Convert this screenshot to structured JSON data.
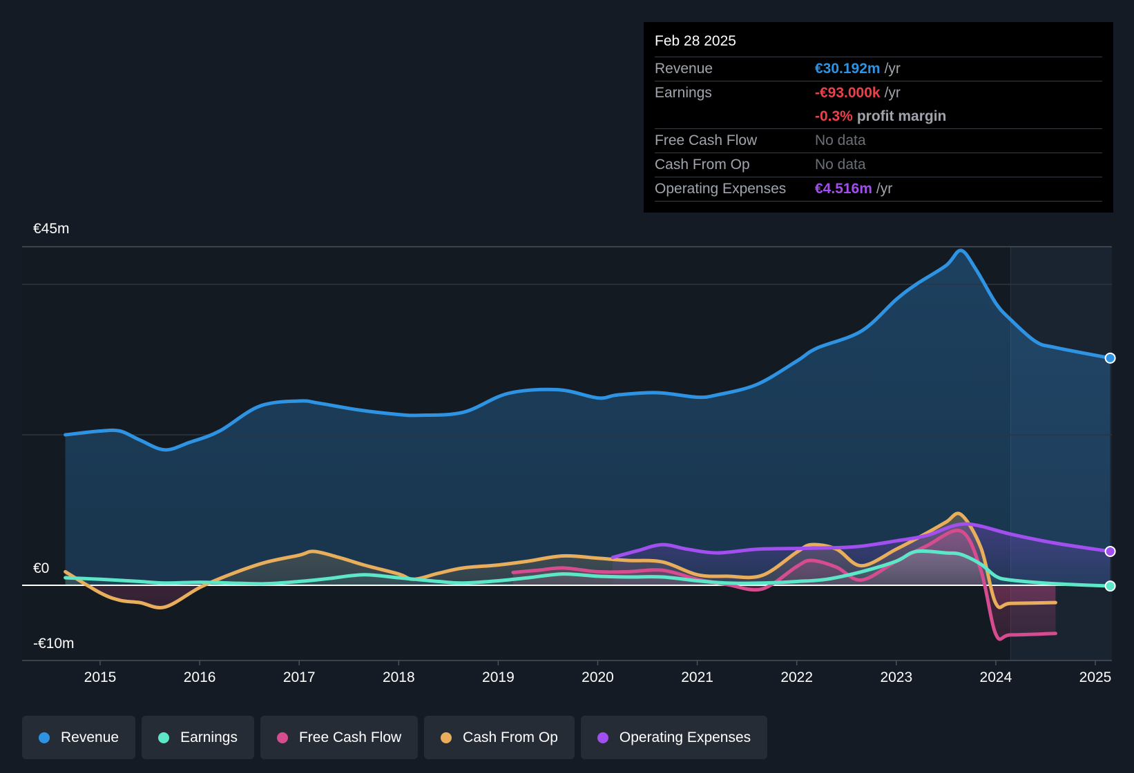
{
  "tooltip": {
    "date": "Feb 28 2025",
    "revenue": {
      "label": "Revenue",
      "value": "€30.192m",
      "unit": "/yr"
    },
    "earnings": {
      "label": "Earnings",
      "value": "-€93.000k",
      "unit": "/yr"
    },
    "margin": {
      "value": "-0.3%",
      "label": "profit margin"
    },
    "fcf": {
      "label": "Free Cash Flow",
      "value": "No data"
    },
    "cfo": {
      "label": "Cash From Op",
      "value": "No data"
    },
    "opex": {
      "label": "Operating Expenses",
      "value": "€4.516m",
      "unit": "/yr"
    }
  },
  "legend": [
    {
      "label": "Revenue",
      "color": "#2e93e2"
    },
    {
      "label": "Earnings",
      "color": "#5ee6c8"
    },
    {
      "label": "Free Cash Flow",
      "color": "#d64d8f"
    },
    {
      "label": "Cash From Op",
      "color": "#e8ae5c"
    },
    {
      "label": "Operating Expenses",
      "color": "#a24ff0"
    }
  ],
  "chart_data": {
    "type": "line",
    "ylim": [
      -10,
      45
    ],
    "y_tick_labels": [
      "€45m",
      "€0",
      "-€10m"
    ],
    "x_tick_labels": [
      "2015",
      "2016",
      "2017",
      "2018",
      "2019",
      "2020",
      "2021",
      "2022",
      "2023",
      "2024",
      "2025"
    ],
    "xlim": [
      2014.6,
      2025.15
    ],
    "forecast_start": 2024.15,
    "series": [
      {
        "name": "Revenue",
        "color": "#2e93e2",
        "x": [
          2014.65,
          2015.0,
          2015.2,
          2015.4,
          2015.65,
          2015.9,
          2016.2,
          2016.6,
          2017.0,
          2017.2,
          2017.6,
          2018.0,
          2018.2,
          2018.65,
          2019.1,
          2019.6,
          2020.0,
          2020.2,
          2020.6,
          2021.0,
          2021.2,
          2021.6,
          2022.0,
          2022.2,
          2022.65,
          2023.0,
          2023.2,
          2023.5,
          2023.65,
          2023.8,
          2024.0,
          2024.15,
          2024.4,
          2024.6,
          2025.15
        ],
        "y": [
          20.0,
          20.5,
          20.5,
          19.3,
          18.0,
          19.0,
          20.5,
          23.8,
          24.5,
          24.2,
          23.3,
          22.7,
          22.6,
          23.0,
          25.5,
          26.0,
          24.9,
          25.3,
          25.6,
          25.0,
          25.3,
          26.7,
          29.8,
          31.5,
          33.8,
          38.0,
          40.0,
          42.5,
          44.5,
          42.0,
          37.5,
          35.3,
          32.4,
          31.6,
          30.2
        ]
      },
      {
        "name": "Earnings",
        "color": "#5ee6c8",
        "x": [
          2014.65,
          2015.0,
          2015.4,
          2015.65,
          2016.0,
          2016.3,
          2016.65,
          2017.0,
          2017.3,
          2017.65,
          2018.0,
          2018.4,
          2018.65,
          2019.0,
          2019.3,
          2019.65,
          2020.0,
          2020.3,
          2020.65,
          2021.0,
          2021.3,
          2021.65,
          2022.0,
          2022.3,
          2022.65,
          2023.0,
          2023.2,
          2023.5,
          2023.65,
          2023.85,
          2024.0,
          2024.15,
          2024.6,
          2025.15
        ],
        "y": [
          1.0,
          0.8,
          0.5,
          0.3,
          0.4,
          0.3,
          0.2,
          0.5,
          0.9,
          1.4,
          1.0,
          0.5,
          0.3,
          0.6,
          1.0,
          1.5,
          1.2,
          1.1,
          1.1,
          0.6,
          0.3,
          0.3,
          0.5,
          0.8,
          1.8,
          3.2,
          4.5,
          4.3,
          4.1,
          2.8,
          1.2,
          0.7,
          0.2,
          -0.1
        ]
      },
      {
        "name": "Free Cash Flow",
        "color": "#d64d8f",
        "x": [
          2019.15,
          2019.4,
          2019.65,
          2020.0,
          2020.3,
          2020.65,
          2021.0,
          2021.3,
          2021.65,
          2022.0,
          2022.15,
          2022.4,
          2022.65,
          2023.0,
          2023.3,
          2023.65,
          2023.85,
          2024.0,
          2024.15,
          2024.6
        ],
        "y": [
          1.7,
          2.0,
          2.3,
          1.8,
          1.8,
          2.0,
          0.8,
          0.1,
          -0.5,
          2.5,
          3.3,
          2.4,
          0.7,
          3.2,
          5.2,
          7.2,
          2.0,
          -6.5,
          -6.6,
          -6.4
        ]
      },
      {
        "name": "Cash From Op",
        "color": "#e8ae5c",
        "x": [
          2014.65,
          2015.0,
          2015.2,
          2015.4,
          2015.65,
          2016.0,
          2016.3,
          2016.65,
          2017.0,
          2017.15,
          2017.4,
          2017.65,
          2018.0,
          2018.15,
          2018.4,
          2018.65,
          2019.0,
          2019.3,
          2019.65,
          2020.0,
          2020.3,
          2020.65,
          2021.0,
          2021.3,
          2021.65,
          2022.0,
          2022.15,
          2022.4,
          2022.65,
          2023.0,
          2023.3,
          2023.5,
          2023.65,
          2023.85,
          2024.0,
          2024.15,
          2024.6
        ],
        "y": [
          1.8,
          -1.0,
          -2.0,
          -2.3,
          -2.9,
          -0.3,
          1.4,
          3.0,
          4.0,
          4.5,
          3.7,
          2.7,
          1.5,
          0.8,
          1.6,
          2.3,
          2.7,
          3.2,
          3.9,
          3.6,
          3.3,
          3.1,
          1.4,
          1.2,
          1.3,
          4.4,
          5.4,
          4.8,
          2.6,
          4.8,
          6.9,
          8.4,
          9.4,
          5.0,
          -2.4,
          -2.4,
          -2.3
        ]
      },
      {
        "name": "Operating Expenses",
        "color": "#a24ff0",
        "x": [
          2020.15,
          2020.4,
          2020.65,
          2020.9,
          2021.2,
          2021.6,
          2022.0,
          2022.4,
          2022.65,
          2023.0,
          2023.3,
          2023.6,
          2023.8,
          2024.15,
          2024.6,
          2025.15
        ],
        "y": [
          3.7,
          4.6,
          5.4,
          4.8,
          4.3,
          4.8,
          4.9,
          5.0,
          5.2,
          5.9,
          6.6,
          8.0,
          8.0,
          6.8,
          5.6,
          4.5
        ]
      }
    ]
  }
}
